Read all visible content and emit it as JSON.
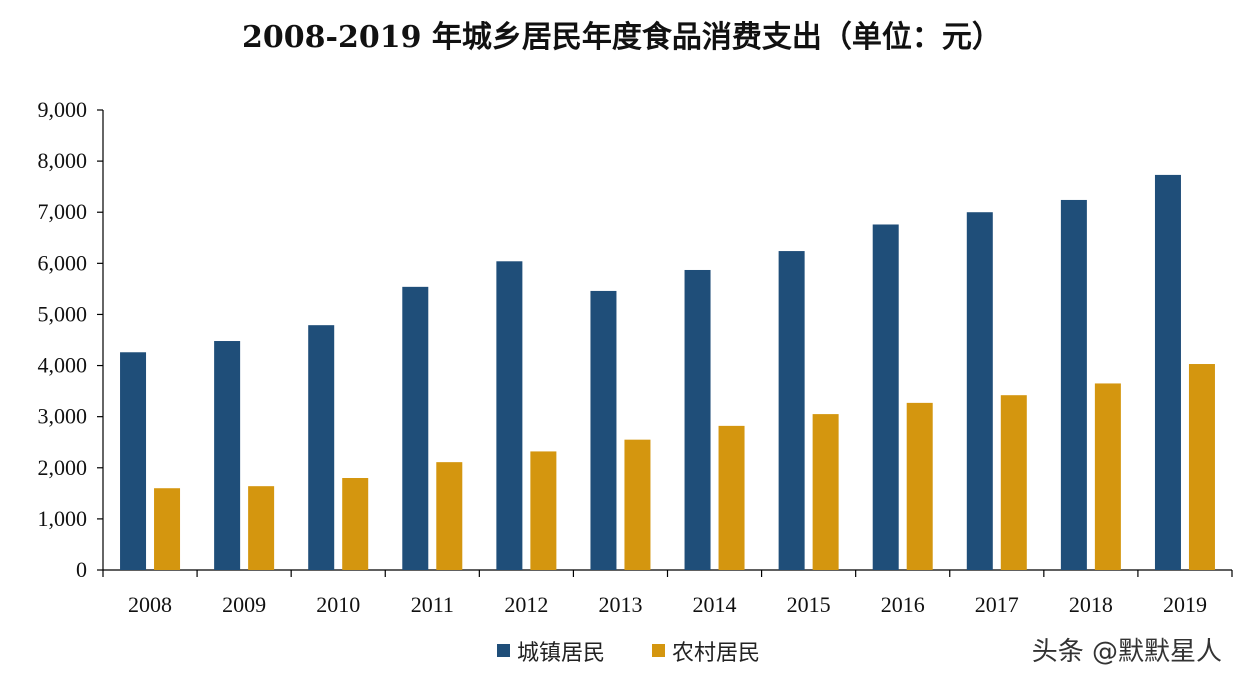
{
  "chart_data": {
    "type": "bar",
    "title": "2008-2019 年城乡居民年度食品消费支出（单位：元）",
    "categories": [
      "2008",
      "2009",
      "2010",
      "2011",
      "2012",
      "2013",
      "2014",
      "2015",
      "2016",
      "2017",
      "2018",
      "2019"
    ],
    "series": [
      {
        "name": "城镇居民",
        "color": "#1f4e79",
        "values": [
          4260,
          4480,
          4790,
          5540,
          6040,
          5460,
          5870,
          6240,
          6760,
          7000,
          7240,
          7730
        ]
      },
      {
        "name": "农村居民",
        "color": "#d4960f",
        "values": [
          1600,
          1640,
          1800,
          2110,
          2320,
          2550,
          2820,
          3050,
          3270,
          3420,
          3650,
          4030
        ]
      }
    ],
    "ylim": [
      0,
      9000
    ],
    "yticks": [
      "0",
      "1,000",
      "2,000",
      "3,000",
      "4,000",
      "5,000",
      "6,000",
      "7,000",
      "8,000",
      "9,000"
    ],
    "grid": false,
    "legend_position": "bottom-center"
  },
  "watermark": "头条 @默默星人"
}
